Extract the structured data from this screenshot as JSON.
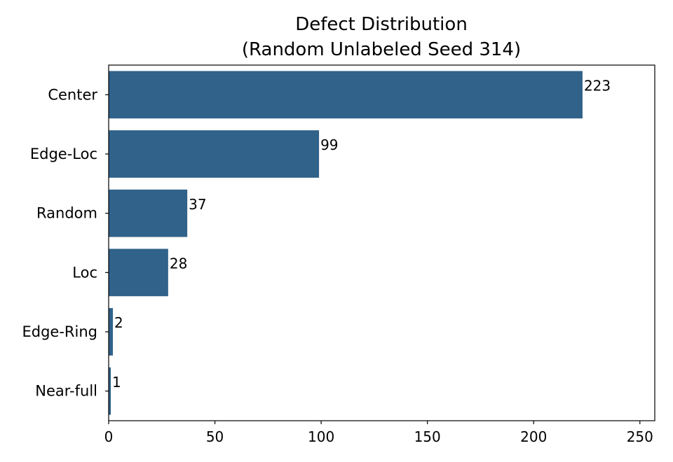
{
  "chart_data": {
    "type": "bar",
    "orientation": "horizontal",
    "title": "Defect Distribution",
    "subtitle": "(Random Unlabeled Seed 314)",
    "categories": [
      "Center",
      "Edge-Loc",
      "Random",
      "Loc",
      "Edge-Ring",
      "Near-full"
    ],
    "values": [
      223,
      99,
      37,
      28,
      2,
      1
    ],
    "data_labels": [
      "223",
      "99",
      "37",
      "28",
      "2",
      "1"
    ],
    "xticks": [
      0,
      50,
      100,
      150,
      200,
      250
    ],
    "xtick_labels": [
      "0",
      "50",
      "100",
      "150",
      "200",
      "250"
    ],
    "xlim": [
      0,
      257
    ],
    "grid": false,
    "bar_color": "#30628a"
  }
}
